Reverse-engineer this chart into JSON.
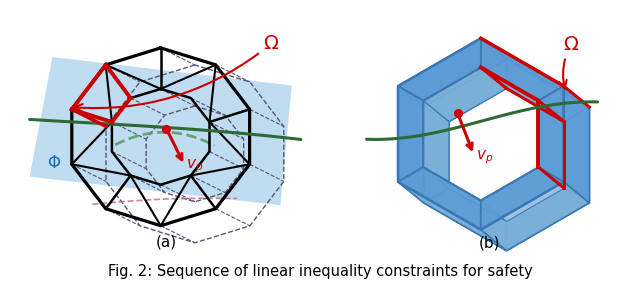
{
  "title": "Fig. 2: Sequence of linear inequality constraints for safety",
  "title_fontsize": 10.5,
  "label_a": "(a)",
  "label_b": "(b)",
  "fig_width": 6.4,
  "fig_height": 2.85,
  "bg_color": "#ffffff",
  "plane_color": "#b8d8f0",
  "blue_mid": "#5b9bd5",
  "blue_dark": "#2e75b6",
  "blue_light": "#8ab4d8",
  "red_color": "#cc0000",
  "green_color": "#2d6a35",
  "dashed_green": "#5a9e6a",
  "dashed_pink": "#c080a0",
  "text_color": "#000000",
  "phi_color": "#1a6faf"
}
